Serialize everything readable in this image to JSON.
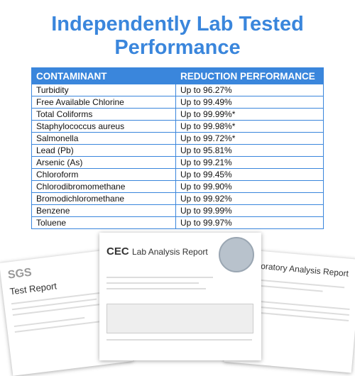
{
  "header": {
    "title_line1": "Independently Lab Tested",
    "title_line2": "Performance"
  },
  "table": {
    "columns": [
      "CONTAMINANT",
      "REDUCTION PERFORMANCE"
    ],
    "rows": [
      [
        "Turbidity",
        "Up to 96.27%"
      ],
      [
        "Free Available Chlorine",
        "Up to 99.49%"
      ],
      [
        "Total Coliforms",
        "Up to 99.99%*"
      ],
      [
        "Staphylococcus aureus",
        "Up to 99.98%*"
      ],
      [
        "Salmonella",
        "Up to 99.72%*"
      ],
      [
        "Lead (Pb)",
        "Up to 95.81%"
      ],
      [
        "Arsenic (As)",
        "Up to 99.21%"
      ],
      [
        "Chloroform",
        "Up to 99.45%"
      ],
      [
        "Chlorodibromomethane",
        "Up to 99.90%"
      ],
      [
        "Bromodichloromethane",
        "Up to 99.92%"
      ],
      [
        "Benzene",
        "Up to 99.99%"
      ],
      [
        "Toluene",
        "Up to 99.97%"
      ]
    ]
  },
  "documents": {
    "left_logo": "SGS",
    "left_title": "Test Report",
    "center_logo": "CEC",
    "center_title": "Lab Analysis Report",
    "right_title": "Laboratory Analysis Report"
  }
}
